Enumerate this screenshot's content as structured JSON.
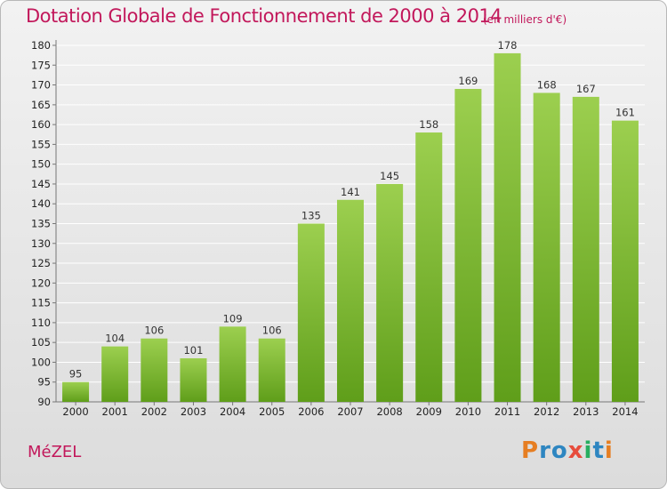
{
  "header": {
    "title": "Dotation Globale de Fonctionnement de 2000 à 2014",
    "subtitle": "(en milliers d'€)"
  },
  "footer": {
    "place": "MéZEL",
    "brand": "Proxiti"
  },
  "colors": {
    "accent": "#c2185b",
    "bar_top": "#9ccf4f",
    "bar_bottom": "#5f9e1a",
    "logo_p": "#e67e22",
    "logo_r": "#2e86c1",
    "logo_o": "#2e86c1",
    "logo_x": "#e74c3c",
    "logo_i": "#27ae60",
    "logo_t": "#2e86c1",
    "logo_i2": "#e67e22"
  },
  "chart_data": {
    "type": "bar",
    "title": "Dotation Globale de Fonctionnement de 2000 à 2014",
    "subtitle": "(en milliers d'€)",
    "xlabel": "",
    "ylabel": "",
    "categories": [
      "2000",
      "2001",
      "2002",
      "2003",
      "2004",
      "2005",
      "2006",
      "2007",
      "2008",
      "2009",
      "2010",
      "2011",
      "2012",
      "2013",
      "2014"
    ],
    "values": [
      95,
      104,
      106,
      101,
      109,
      106,
      135,
      141,
      145,
      158,
      169,
      178,
      168,
      167,
      161
    ],
    "ylim": [
      90,
      180
    ],
    "ytick_step": 5,
    "grid": true,
    "legend": "none"
  }
}
